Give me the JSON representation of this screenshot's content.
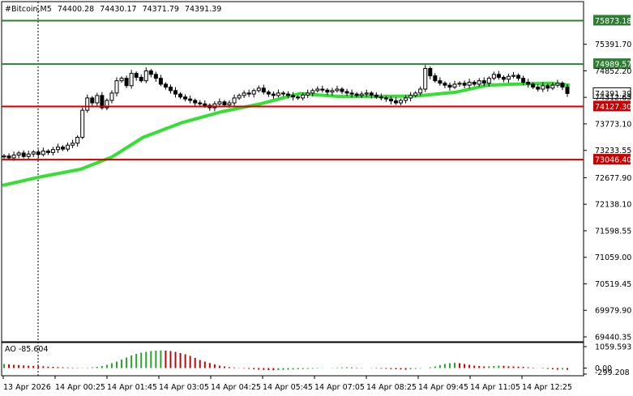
{
  "chart_data": {
    "type": "candlestick",
    "header": {
      "symbol": "#Bitcoin,M5",
      "open": "74400.28",
      "high": "74430.17",
      "low": "74371.79",
      "close": "74391.39"
    },
    "y_ticks": [
      "75391.70",
      "74852.20",
      "74312.65",
      "73773.10",
      "73233.55",
      "72677.90",
      "72138.10",
      "71598.55",
      "71059.00",
      "70519.45",
      "69979.90",
      "69440.35"
    ],
    "ylim": [
      69440.35,
      75930
    ],
    "x_ticks": [
      "13 Apr 2026",
      "14 Apr 00:25",
      "14 Apr 01:45",
      "14 Apr 03:05",
      "14 Apr 04:25",
      "14 Apr 05:45",
      "14 Apr 07:05",
      "14 Apr 08:25",
      "14 Apr 09:45",
      "14 Apr 11:05",
      "14 Apr 12:25"
    ],
    "levels": [
      {
        "value": "75873.18",
        "price": 75873.18,
        "color": "#2e7d32",
        "label_bg": "#2e7d32"
      },
      {
        "value": "74989.57",
        "price": 74989.57,
        "color": "#2e7d32",
        "label_bg": "#2e7d32"
      },
      {
        "value": "74127.30",
        "price": 74127.3,
        "color": "#cc0000",
        "label_bg": "#cc0000"
      },
      {
        "value": "73046.40",
        "price": 73046.4,
        "color": "#cc0000",
        "label_bg": "#cc0000"
      }
    ],
    "current_price": {
      "value": "74391.39",
      "price": 74391.39
    },
    "closes": [
      73120,
      73080,
      73140,
      73180,
      73110,
      73160,
      73200,
      73150,
      73220,
      73190,
      73250,
      73300,
      73260,
      73340,
      73380,
      73500,
      74050,
      74300,
      74200,
      74350,
      74100,
      74250,
      74400,
      74650,
      74700,
      74550,
      74800,
      74720,
      74650,
      74850,
      74780,
      74700,
      74580,
      74520,
      74450,
      74380,
      74320,
      74280,
      74250,
      74200,
      74180,
      74150,
      74100,
      74180,
      74220,
      74160,
      74200,
      74300,
      74350,
      74400,
      74380,
      74450,
      74500,
      74420,
      74380,
      74350,
      74400,
      74380,
      74350,
      74320,
      74300,
      74360,
      74400,
      74450,
      74480,
      74460,
      74420,
      74450,
      74480,
      74430,
      74400,
      74380,
      74350,
      74380,
      74400,
      74360,
      74320,
      74300,
      74280,
      74240,
      74200,
      74250,
      74300,
      74350,
      74400,
      74480,
      74900,
      74750,
      74650,
      74600,
      74560,
      74520,
      74580,
      74600,
      74560,
      74620,
      74580,
      74650,
      74600,
      74700,
      74780,
      74720,
      74680,
      74740,
      74760,
      74700,
      74620,
      74580,
      74520,
      74480,
      74550,
      74500,
      74560,
      74600,
      74520,
      74391.39
    ],
    "ma_points": [
      [
        0,
        72520
      ],
      [
        10,
        72700
      ],
      [
        20,
        72850
      ],
      [
        28,
        73100
      ],
      [
        36,
        73500
      ],
      [
        46,
        73800
      ],
      [
        56,
        74020
      ],
      [
        66,
        74180
      ],
      [
        76,
        74390
      ],
      [
        86,
        74330
      ],
      [
        96,
        74330
      ],
      [
        106,
        74340
      ],
      [
        116,
        74420
      ],
      [
        124,
        74560
      ],
      [
        130,
        74580
      ],
      [
        140,
        74600
      ],
      [
        145,
        74560
      ]
    ],
    "ao": {
      "label": "AO -85.604",
      "y_ticks": [
        "1059.593",
        "0.00",
        "-299.208"
      ],
      "ylim": [
        -299.208,
        1059.593
      ],
      "values": [
        200,
        180,
        160,
        150,
        130,
        120,
        110,
        100,
        90,
        70,
        60,
        50,
        40,
        30,
        20,
        15,
        10,
        20,
        40,
        60,
        100,
        160,
        240,
        320,
        420,
        520,
        620,
        700,
        760,
        800,
        840,
        860,
        870,
        860,
        840,
        800,
        740,
        680,
        600,
        500,
        400,
        320,
        250,
        180,
        120,
        80,
        50,
        30,
        10,
        -20,
        -40,
        -60,
        -80,
        -90,
        -100,
        -110,
        -100,
        -90,
        -80,
        -70,
        -60,
        -50,
        -40,
        -30,
        -20,
        -10,
        0,
        10,
        20,
        30,
        40,
        30,
        20,
        10,
        0,
        -10,
        -20,
        -30,
        -40,
        -50,
        -60,
        -70,
        -80,
        -60,
        -40,
        -20,
        0,
        40,
        80,
        140,
        200,
        240,
        260,
        240,
        200,
        160,
        120,
        100,
        80,
        90,
        100,
        120,
        110,
        90,
        80,
        70,
        60,
        40,
        20,
        0,
        -20,
        -40,
        -60,
        -80,
        -70,
        -85
      ]
    }
  }
}
